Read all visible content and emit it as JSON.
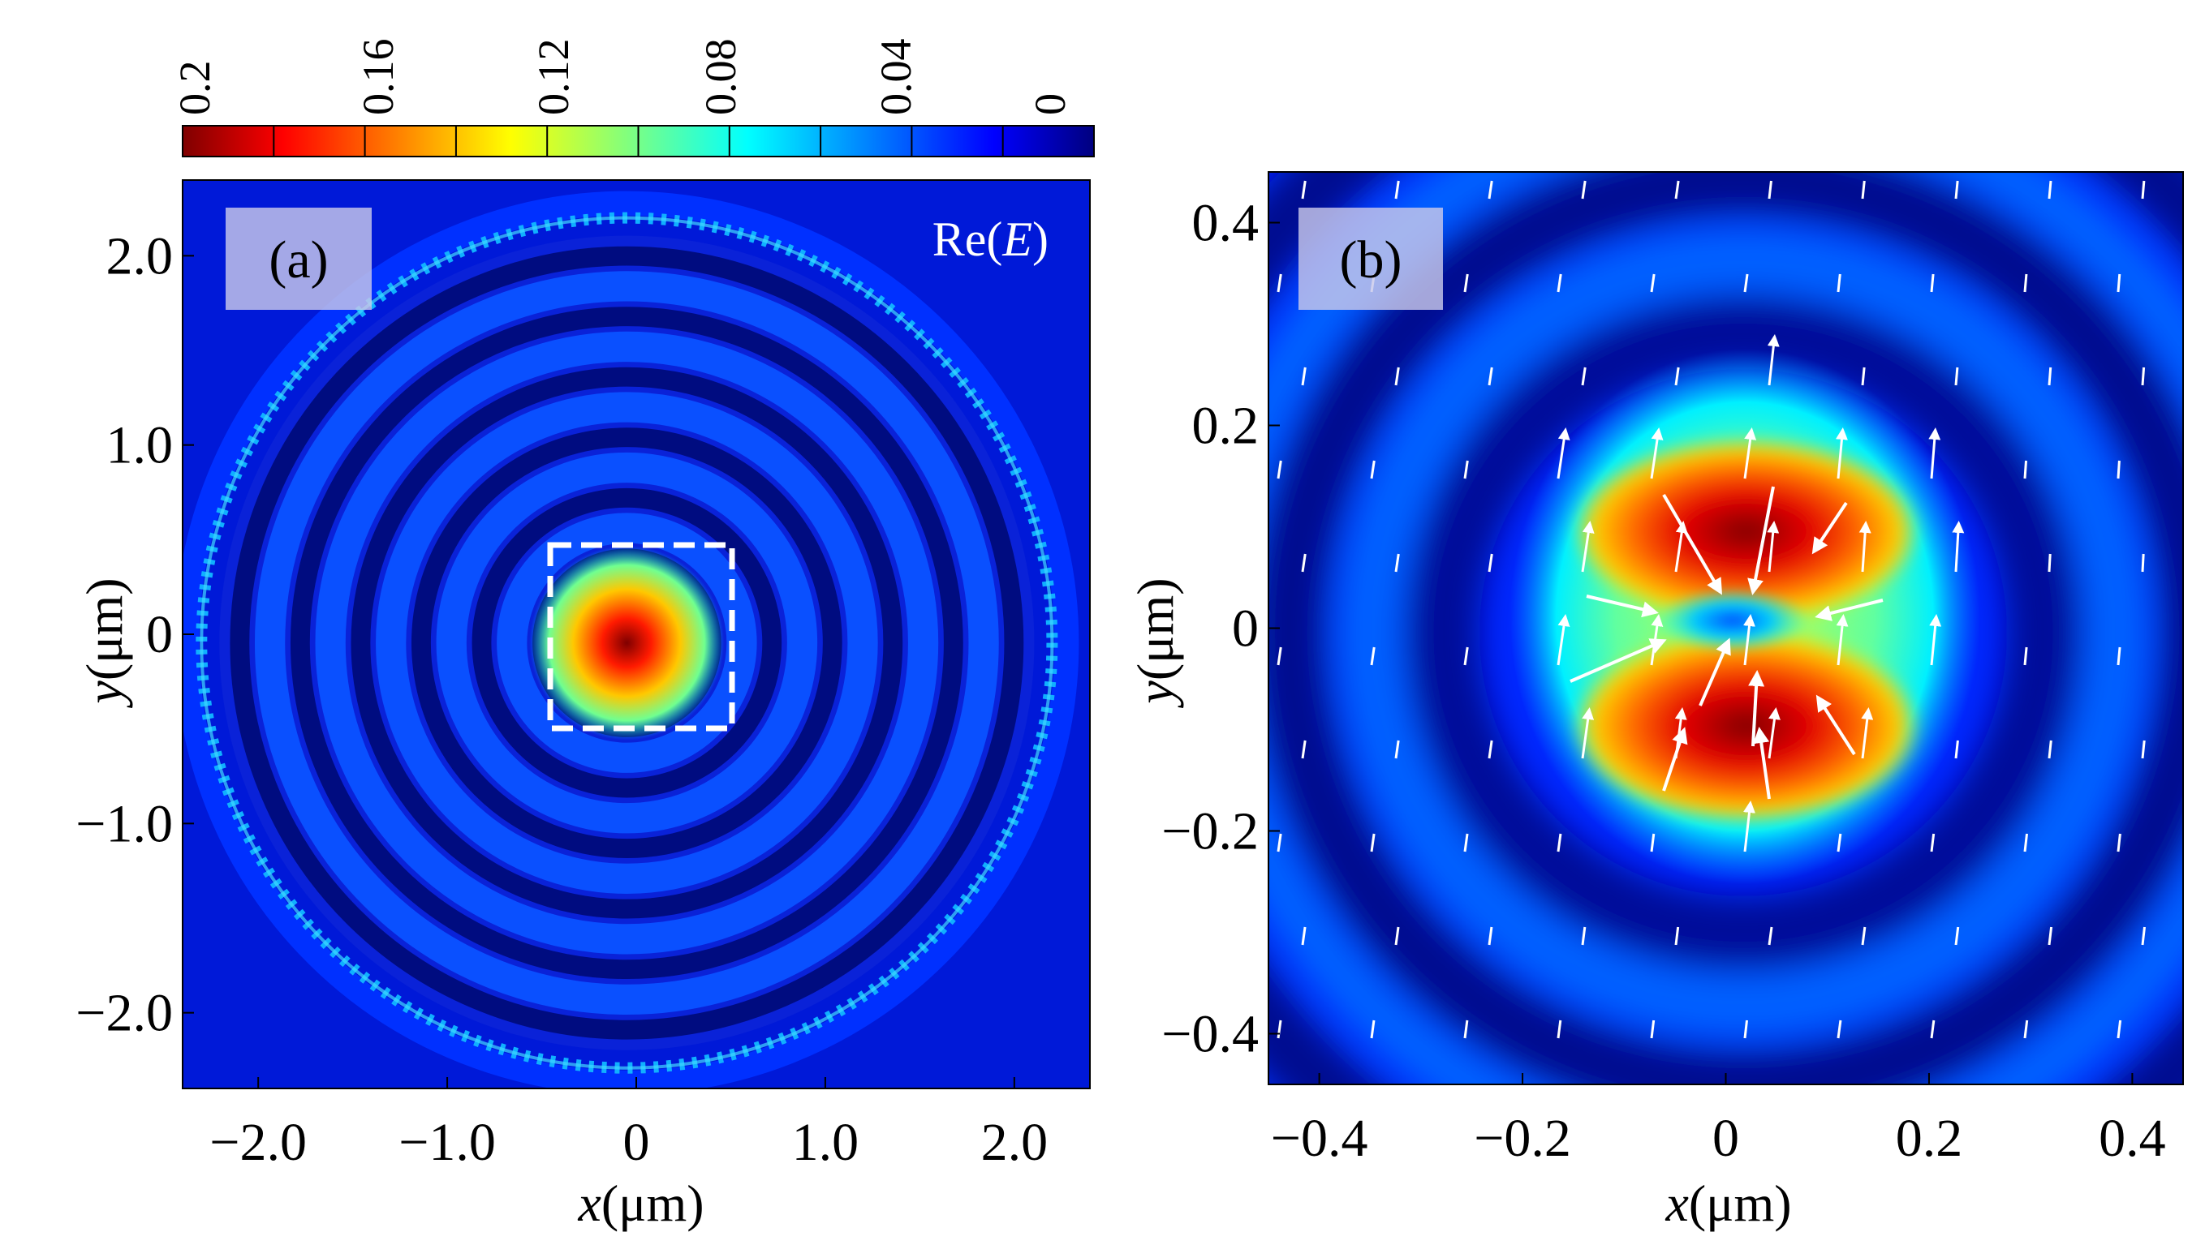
{
  "colorbar": {
    "tick_labels": [
      "0.2",
      "0.16",
      "0.12",
      "0.08",
      "0.04",
      "0"
    ],
    "range": [
      0,
      0.2
    ],
    "colormap": "jet",
    "colors": [
      "#00007f",
      "#0000ff",
      "#00ffff",
      "#ffff00",
      "#ff0000",
      "#7f0000"
    ]
  },
  "chart_data": [
    {
      "type": "heatmap",
      "panel_label": "(a)",
      "quantity_label_pre": "Re(",
      "quantity_label_var": "E",
      "quantity_label_post": ")",
      "xlabel_var": "x",
      "xlabel_unit": "(μm)",
      "ylabel_var": "y",
      "ylabel_unit": "(μm)",
      "xlim": [
        -2.4,
        2.4
      ],
      "ylim": [
        -2.4,
        2.4
      ],
      "x_ticks": [
        -2.0,
        -1.0,
        0,
        1.0,
        2.0
      ],
      "x_tick_labels": [
        "−2.0",
        "−1.0",
        "0",
        "1.0",
        "2.0"
      ],
      "y_ticks": [
        2.0,
        1.0,
        0,
        -1.0,
        -2.0
      ],
      "y_tick_labels": [
        "2.0",
        "1.0",
        "0",
        "−1.0",
        "−2.0"
      ],
      "center_peak": {
        "x": -0.05,
        "y": -0.05,
        "value": 0.2
      },
      "ring_period_um": 0.32,
      "outer_ring_radius_um": 2.25,
      "zoom_box": {
        "x": [
          -0.5,
          0.5
        ],
        "y": [
          -0.5,
          0.5
        ]
      }
    },
    {
      "type": "heatmap",
      "panel_label": "(b)",
      "xlabel_var": "x",
      "xlabel_unit": "(μm)",
      "ylabel_var": "y",
      "ylabel_unit": "(μm)",
      "xlim": [
        -0.45,
        0.45
      ],
      "ylim": [
        -0.45,
        0.45
      ],
      "x_ticks": [
        -0.4,
        -0.2,
        0,
        0.2,
        0.4
      ],
      "x_tick_labels": [
        "−0.4",
        "−0.2",
        "0",
        "0.2",
        "0.4"
      ],
      "y_ticks": [
        0.4,
        0.2,
        0,
        -0.2,
        -0.4
      ],
      "y_tick_labels": [
        "0.4",
        "0.2",
        "0",
        "−0.2",
        "−0.4"
      ],
      "lobes": [
        {
          "x": 0.0,
          "y": 0.12,
          "value": 0.2
        },
        {
          "x": 0.0,
          "y": -0.08,
          "value": 0.2
        }
      ],
      "field_arrows": "in-plane vector field (white arrows)"
    }
  ]
}
